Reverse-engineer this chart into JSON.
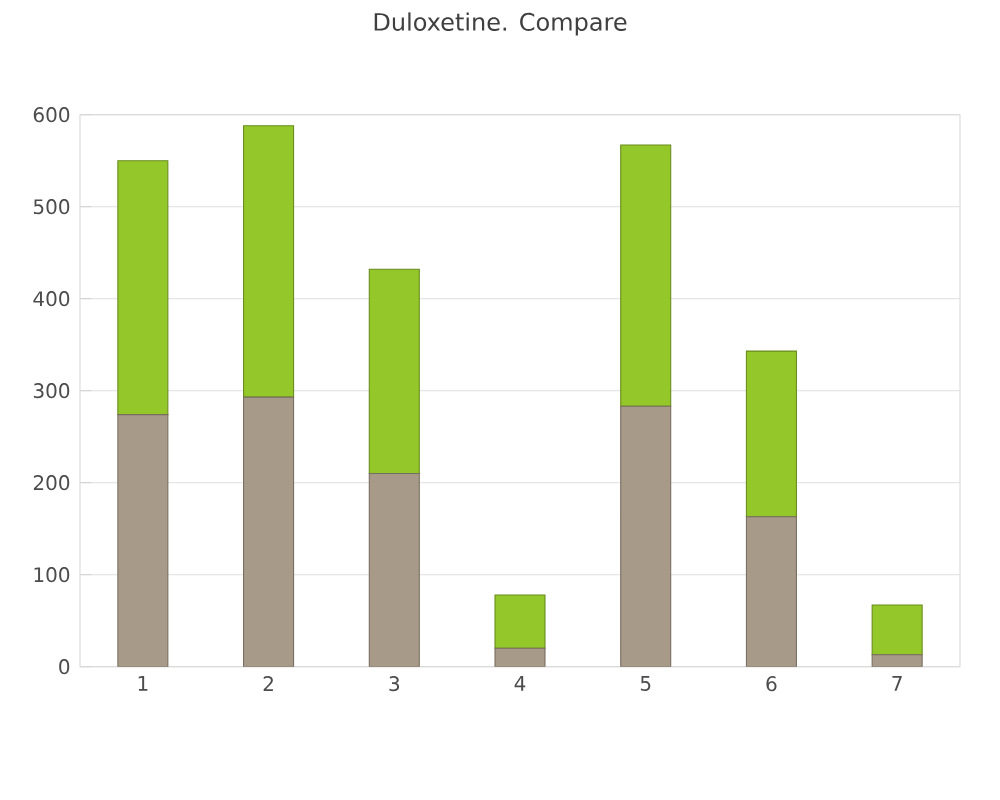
{
  "chart_data": {
    "type": "bar",
    "title": "Duloxetine. Compare",
    "stacked": true,
    "categories": [
      "1",
      "2",
      "3",
      "4",
      "5",
      "6",
      "7"
    ],
    "series": [
      {
        "color": "#a89a88",
        "values": [
          274,
          293,
          210,
          20,
          283,
          163,
          13
        ]
      },
      {
        "color": "#94c72a",
        "values": [
          276,
          295,
          222,
          58,
          284,
          180,
          54
        ]
      }
    ],
    "ylim": [
      0,
      600
    ],
    "yticks": [
      0,
      100,
      200,
      300,
      400,
      500,
      600
    ],
    "grid": "y"
  }
}
